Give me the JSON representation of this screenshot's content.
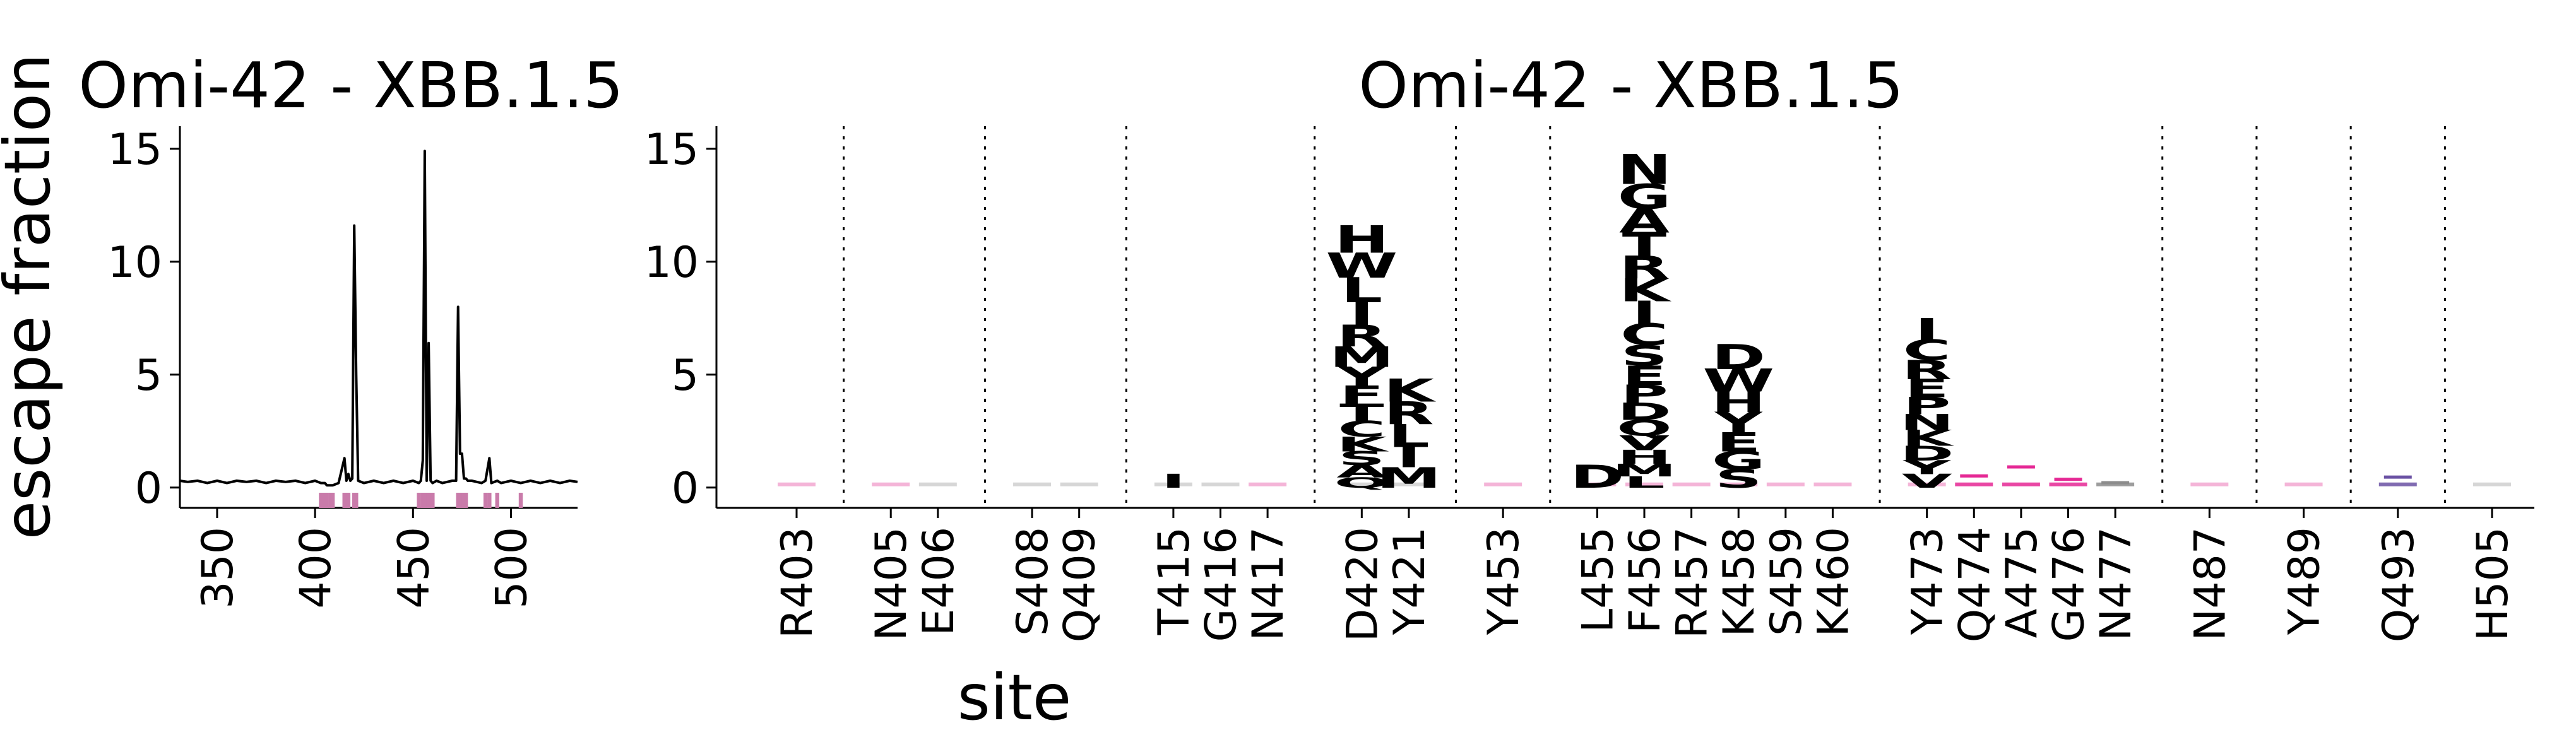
{
  "figure": {
    "ylabel": "escape fraction",
    "xlabel": "site"
  },
  "colors": {
    "highlight": "#E52794",
    "light_pink": "#F2A7D0",
    "gray": "#8C8C8C",
    "light_gray": "#CFCFCF",
    "purple": "#6A51A3",
    "site_bar": "#C97BAA",
    "line": "#000000"
  },
  "chart_data": [
    {
      "type": "line",
      "title": "Omi-42 - XBB.1.5",
      "xlabel": "",
      "ylabel": "escape fraction",
      "xlim": [
        331,
        534
      ],
      "ylim": [
        -0.9,
        16
      ],
      "xticks": [
        350,
        400,
        450,
        500
      ],
      "yticks": [
        0,
        5,
        10,
        15
      ],
      "series": [
        {
          "x": [
            331,
            335,
            340,
            345,
            350,
            355,
            360,
            365,
            370,
            375,
            380,
            385,
            390,
            395,
            400,
            403,
            405,
            406,
            408,
            409,
            412,
            415,
            416,
            417,
            418,
            419,
            420,
            421,
            422,
            425,
            430,
            435,
            440,
            445,
            450,
            453,
            454,
            455,
            456,
            457,
            458,
            459,
            460,
            462,
            465,
            470,
            472,
            473,
            474,
            475,
            476,
            477,
            478,
            480,
            485,
            487,
            489,
            490,
            493,
            495,
            500,
            505,
            510,
            515,
            520,
            525,
            530,
            534
          ],
          "y": [
            0.3,
            0.25,
            0.3,
            0.2,
            0.3,
            0.2,
            0.3,
            0.25,
            0.3,
            0.2,
            0.3,
            0.25,
            0.3,
            0.2,
            0.3,
            0.2,
            0.2,
            0.1,
            0.1,
            0.1,
            0.2,
            1.3,
            0.3,
            0.6,
            0.3,
            0.4,
            11.6,
            5.0,
            0.3,
            0.2,
            0.3,
            0.2,
            0.3,
            0.2,
            0.3,
            0.2,
            0.3,
            1.2,
            14.9,
            0.3,
            6.4,
            0.3,
            0.2,
            0.3,
            0.2,
            0.3,
            0.3,
            8.0,
            1.5,
            1.5,
            0.4,
            0.4,
            0.3,
            0.3,
            0.2,
            0.3,
            1.3,
            0.2,
            0.3,
            0.2,
            0.3,
            0.2,
            0.3,
            0.2,
            0.3,
            0.2,
            0.3,
            0.25
          ]
        }
      ],
      "highlighted_sites": [
        403,
        405,
        406,
        408,
        409,
        415,
        416,
        417,
        420,
        421,
        453,
        455,
        456,
        457,
        458,
        459,
        460,
        473,
        474,
        475,
        476,
        477,
        487,
        489,
        493,
        505
      ]
    },
    {
      "type": "logo",
      "title": "Omi-42 - XBB.1.5",
      "xlabel": "site",
      "ylim": [
        -0.9,
        16
      ],
      "yticks": [
        0,
        5,
        10,
        15
      ],
      "sites": [
        "R403",
        "N405",
        "E406",
        "S408",
        "Q409",
        "T415",
        "G416",
        "N417",
        "D420",
        "Y421",
        "Y453",
        "L455",
        "F456",
        "R457",
        "K458",
        "S459",
        "K460",
        "Y473",
        "Q474",
        "A475",
        "G476",
        "N477",
        "N487",
        "Y489",
        "Q493",
        "H505"
      ],
      "group_sizes": [
        1,
        2,
        2,
        3,
        2,
        1,
        6,
        5,
        1,
        1,
        1,
        1
      ],
      "stacks": [
        {
          "site": "D420",
          "letters": [
            {
              "aa": "Q",
              "v": 0.45
            },
            {
              "aa": "A",
              "v": 0.55
            },
            {
              "aa": "S",
              "v": 0.6
            },
            {
              "aa": "K",
              "v": 0.65
            },
            {
              "aa": "C",
              "v": 0.7
            },
            {
              "aa": "T",
              "v": 0.75
            },
            {
              "aa": "F",
              "v": 0.8
            },
            {
              "aa": "Y",
              "v": 0.85
            },
            {
              "aa": "M",
              "v": 0.9
            },
            {
              "aa": "R",
              "v": 0.95
            },
            {
              "aa": "I",
              "v": 1.0
            },
            {
              "aa": "L",
              "v": 1.1
            },
            {
              "aa": "W",
              "v": 1.1
            },
            {
              "aa": "H",
              "v": 1.2
            }
          ]
        },
        {
          "site": "Y421",
          "letters": [
            {
              "aa": "M",
              "v": 0.9
            },
            {
              "aa": "I",
              "v": 0.9
            },
            {
              "aa": "L",
              "v": 1.0
            },
            {
              "aa": "R",
              "v": 1.0
            },
            {
              "aa": "K",
              "v": 1.0
            }
          ]
        },
        {
          "site": "L455",
          "letters": [
            {
              "aa": "D",
              "v": 1.0
            }
          ]
        },
        {
          "site": "F456",
          "letters": [
            {
              "aa": "L",
              "v": 0.5
            },
            {
              "aa": "M",
              "v": 0.55
            },
            {
              "aa": "H",
              "v": 0.6
            },
            {
              "aa": "V",
              "v": 0.65
            },
            {
              "aa": "Q",
              "v": 0.7
            },
            {
              "aa": "D",
              "v": 0.75
            },
            {
              "aa": "P",
              "v": 0.8
            },
            {
              "aa": "E",
              "v": 0.85
            },
            {
              "aa": "S",
              "v": 0.9
            },
            {
              "aa": "C",
              "v": 0.95
            },
            {
              "aa": "I",
              "v": 1.0
            },
            {
              "aa": "K",
              "v": 1.0
            },
            {
              "aa": "R",
              "v": 1.0
            },
            {
              "aa": "T",
              "v": 1.05
            },
            {
              "aa": "A",
              "v": 1.05
            },
            {
              "aa": "G",
              "v": 1.1
            },
            {
              "aa": "N",
              "v": 1.3
            }
          ]
        },
        {
          "site": "K458",
          "letters": [
            {
              "aa": "S",
              "v": 0.8
            },
            {
              "aa": "G",
              "v": 0.8
            },
            {
              "aa": "E",
              "v": 0.85
            },
            {
              "aa": "Y",
              "v": 0.9
            },
            {
              "aa": "H",
              "v": 0.9
            },
            {
              "aa": "W",
              "v": 1.0
            },
            {
              "aa": "D",
              "v": 1.1
            }
          ]
        },
        {
          "site": "Y473",
          "letters": [
            {
              "aa": "V",
              "v": 0.6
            },
            {
              "aa": "Y",
              "v": 0.6
            },
            {
              "aa": "D",
              "v": 0.65
            },
            {
              "aa": "K",
              "v": 0.7
            },
            {
              "aa": "N",
              "v": 0.7
            },
            {
              "aa": "P",
              "v": 0.75
            },
            {
              "aa": "E",
              "v": 0.8
            },
            {
              "aa": "R",
              "v": 0.85
            },
            {
              "aa": "C",
              "v": 0.9
            },
            {
              "aa": "I",
              "v": 0.95
            }
          ]
        },
        {
          "site": "T415",
          "letters": [
            {
              "aa": "I",
              "v": 0.6
            }
          ]
        }
      ]
    }
  ]
}
